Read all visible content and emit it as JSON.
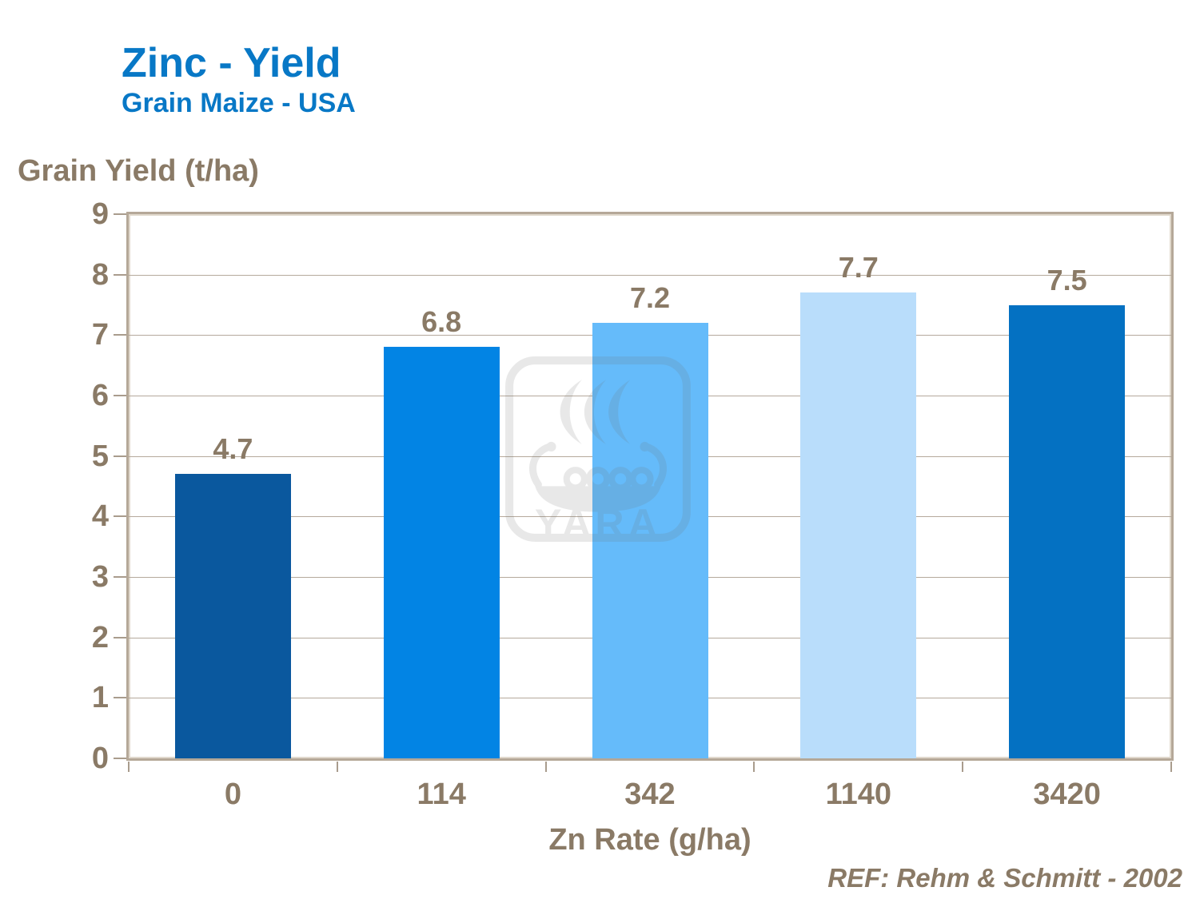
{
  "header": {
    "title": "Zinc - Yield",
    "subtitle": "Grain Maize - USA"
  },
  "chart_data": {
    "type": "bar",
    "title": "Zinc - Yield",
    "subtitle": "Grain Maize - USA",
    "categories": [
      "0",
      "114",
      "342",
      "1140",
      "3420"
    ],
    "values": [
      4.7,
      6.8,
      7.2,
      7.7,
      7.5
    ],
    "value_labels": [
      "4.7",
      "6.8",
      "7.2",
      "7.7",
      "7.5"
    ],
    "bar_colors": [
      "#0A589E",
      "#0284E4",
      "#65BBFA",
      "#B9DDFB",
      "#0471C2"
    ],
    "xlabel": "Zn Rate (g/ha)",
    "ylabel": "Grain Yield (t/ha)",
    "ylim": [
      0,
      9
    ],
    "yticks": [
      0,
      1,
      2,
      3,
      4,
      5,
      6,
      7,
      8,
      9
    ],
    "grid": "horizontal-only",
    "legend": "none"
  },
  "footer": {
    "reference": "REF: Rehm & Schmitt - 2002"
  },
  "watermark": {
    "icon": "yara-viking-ship-logo-icon",
    "text": "YARA"
  },
  "colors": {
    "title_blue": "#0878C6",
    "axis_text_brown": "#8A7A66",
    "axis_line": "#B5A898",
    "gridline": "#B5A99C",
    "background": "#FFFFFF"
  }
}
